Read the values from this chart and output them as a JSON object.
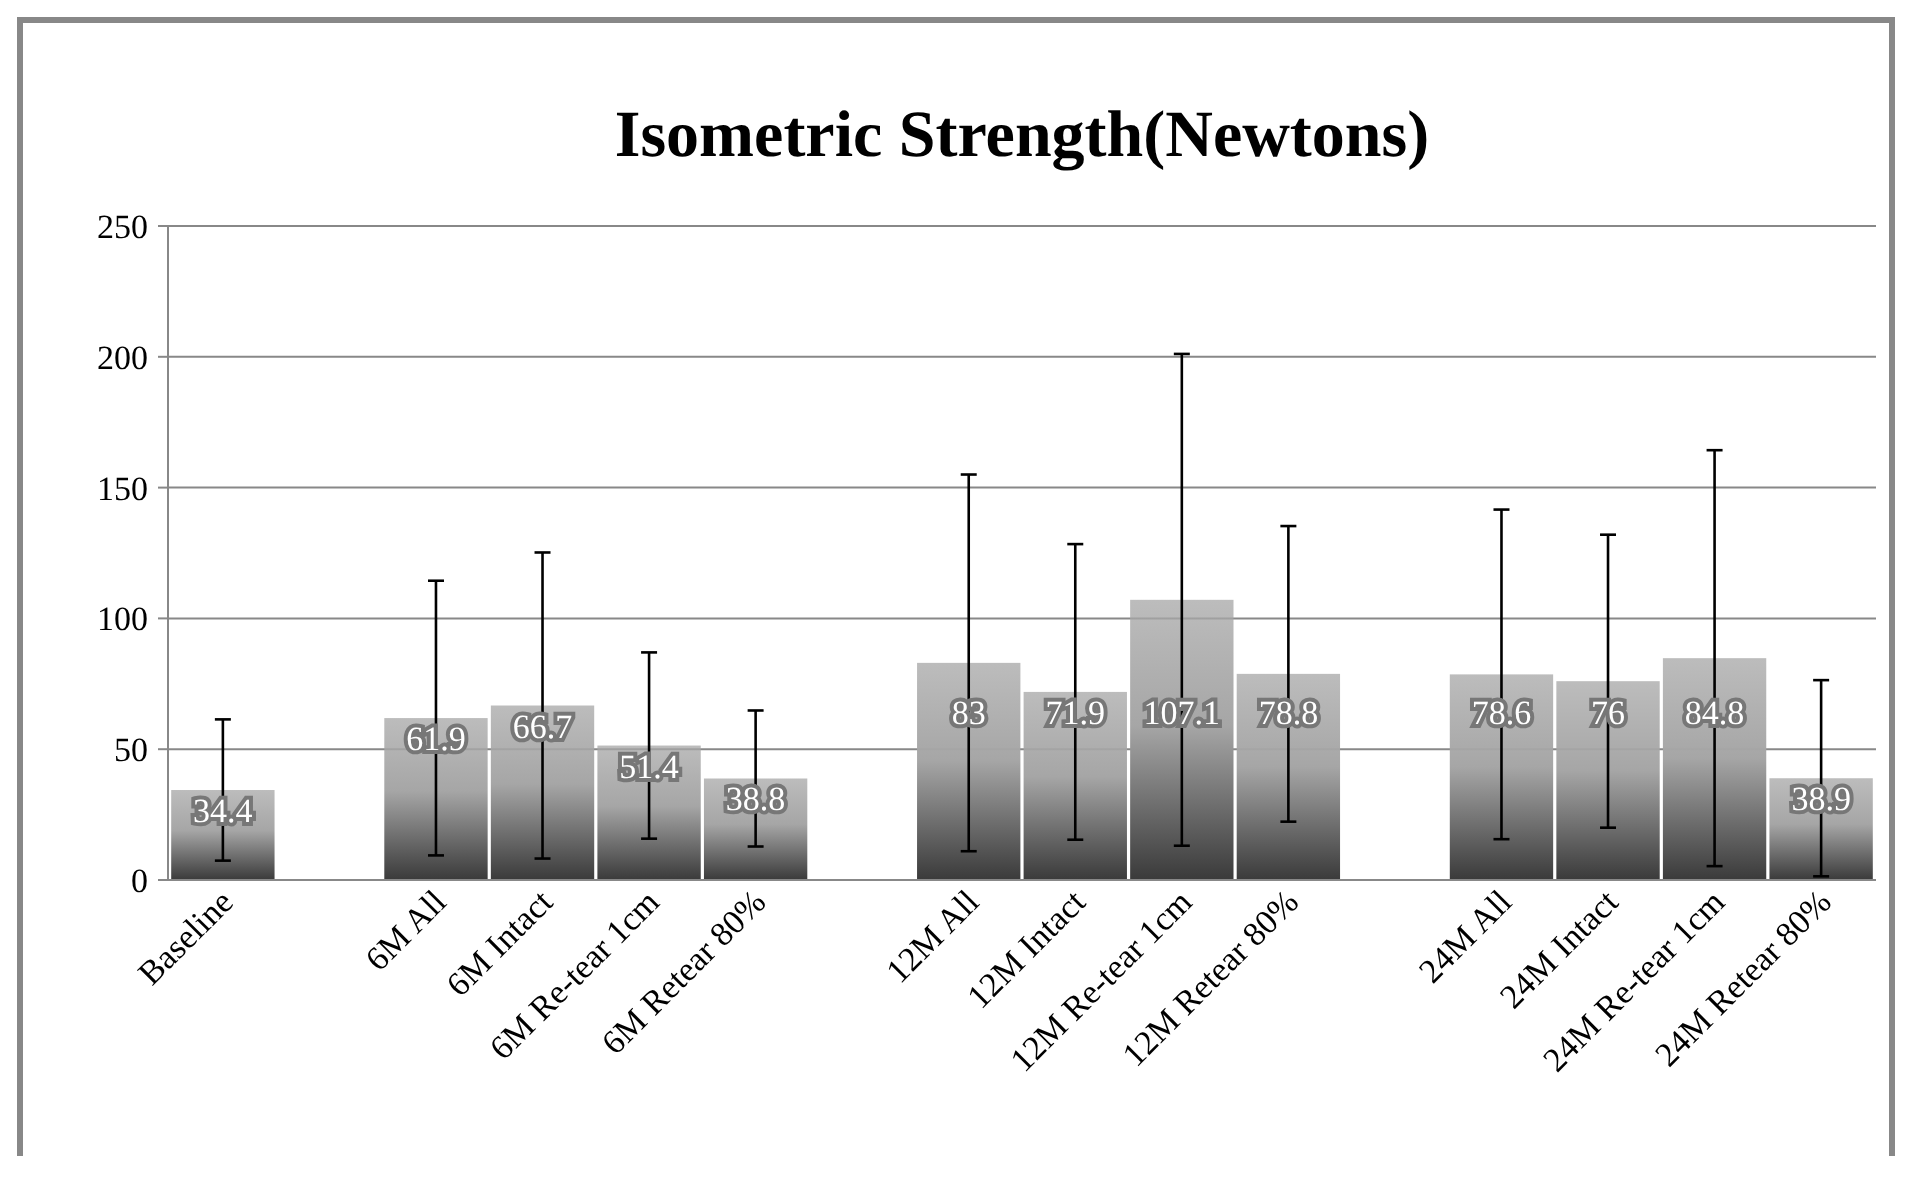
{
  "chart_data": {
    "type": "bar",
    "title": "Isometric Strength(Newtons)",
    "categories": [
      "Baseline",
      null,
      "6M All",
      "6M Intact",
      "6M Re-tear 1cm",
      "6M Retear 80%",
      null,
      "12M All",
      "12M Intact",
      "12M Re-tear 1cm",
      "12M Retear 80%",
      null,
      "24M All",
      "24M Intact",
      "24M Re-tear 1cm",
      "24M Retear 80%"
    ],
    "values": [
      34.4,
      null,
      61.9,
      66.7,
      51.4,
      38.8,
      null,
      83,
      71.9,
      107.1,
      78.8,
      null,
      78.6,
      76,
      84.8,
      38.9
    ],
    "errors": [
      27,
      null,
      52.5,
      58.5,
      35.6,
      26,
      null,
      72,
      56.5,
      94,
      56.5,
      null,
      63,
      56,
      79.5,
      37.5
    ],
    "color": "#a6a6a6",
    "ylim": [
      0,
      250
    ],
    "yticks": [
      0,
      50,
      100,
      150,
      200,
      250
    ],
    "grid": "y",
    "data_labels": true
  }
}
